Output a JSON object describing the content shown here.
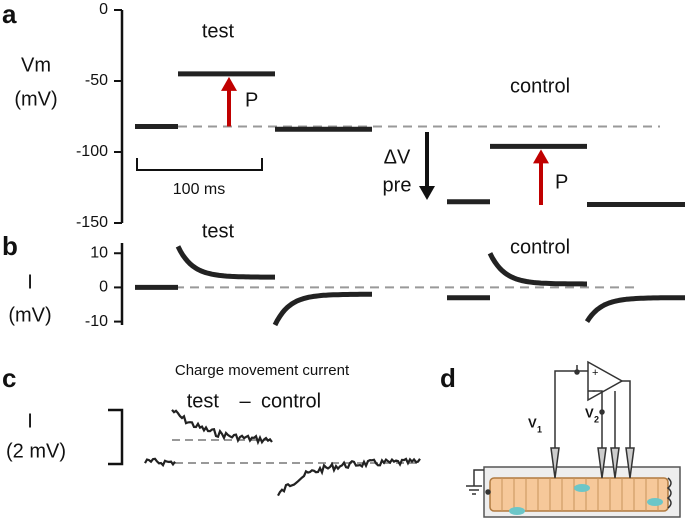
{
  "panel_a": {
    "label": "a",
    "type": "line",
    "y_label": [
      "Vm",
      "(mV)"
    ],
    "ylim": [
      -150,
      0
    ],
    "yticks": [
      0,
      -50,
      -100,
      -150
    ],
    "baseline": -82,
    "trace": [
      -82,
      -45,
      -84,
      -135,
      -96,
      -137
    ],
    "trace_color": "#222222",
    "test_label": "test",
    "control_label": "control",
    "test_color": "#1fb25a",
    "control_color": "#1a7fc4",
    "pulse_label": "P",
    "arrow_color": "#c00000",
    "delta_label": [
      "ΔV",
      "pre"
    ],
    "scale_bar": "100 ms"
  },
  "panel_b": {
    "label": "b",
    "type": "line",
    "y_label": [
      "I",
      "(mV)"
    ],
    "ylim": [
      -11,
      13
    ],
    "yticks": [
      10,
      0,
      -10
    ],
    "baseline": 0,
    "trace": [
      {
        "start": 0,
        "end": 0
      },
      {
        "start": 12,
        "end": 3
      },
      {
        "start": -11,
        "end": -2
      },
      {
        "start": -3,
        "end": -3
      },
      {
        "start": 10,
        "end": 1
      },
      {
        "start": -10,
        "end": -3
      }
    ],
    "test_label": "test",
    "control_label": "control"
  },
  "panel_c": {
    "label": "c",
    "title": "Charge movement current",
    "legend": [
      "test",
      "–",
      "control"
    ],
    "y_label": [
      "I",
      "(2 mV)"
    ]
  },
  "panel_d": {
    "label": "d",
    "electrodes": [
      "V",
      "V"
    ],
    "subscripts": [
      "1",
      "2"
    ],
    "amp_signs": [
      "+",
      "-"
    ]
  }
}
